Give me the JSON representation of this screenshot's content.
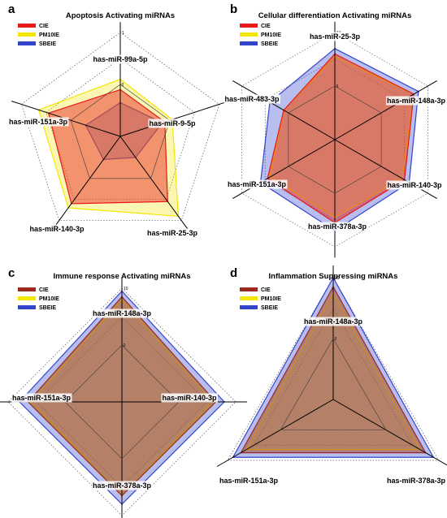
{
  "chart_data": [
    {
      "type": "radar",
      "panel": "a",
      "title": "Apoptosis Activating miRNAs",
      "axes": [
        "has-miR-99a-5p",
        "has-miR-9-5p",
        "has-miR-25-3p",
        "has-miR-140-3p",
        "has-miR-151a-3p"
      ],
      "max_tick_label": "1",
      "mid_tick_label": "0",
      "rlim": [
        -1,
        1
      ],
      "legend": {
        "position": "top-left"
      },
      "series": [
        {
          "name": "SBEIE",
          "color": "#3344cc",
          "values": [
            -0.35,
            -0.15,
            -0.5,
            -0.45,
            -0.3
          ]
        },
        {
          "name": "PM10IE",
          "color": "#f2e600",
          "values": [
            0.1,
            0.05,
            0.9,
            0.7,
            0.65
          ]
        },
        {
          "name": "CIE",
          "color": "#e8191a",
          "values": [
            -0.1,
            -0.1,
            0.55,
            0.6,
            0.45
          ]
        }
      ]
    },
    {
      "type": "radar",
      "panel": "b",
      "title": "Cellular differentiation Activating miRNAs",
      "axes": [
        "has-miR-25-3p",
        "has-miR-148a-3p",
        "has-miR-140-3p",
        "has-miR-378a-3p",
        "has-miR-151a-3p",
        "has-miR-483-3p"
      ],
      "max_tick_label": "10",
      "mid_tick_label": "0",
      "rlim": [
        -10,
        10
      ],
      "legend": {
        "position": "top-left"
      },
      "series": [
        {
          "name": "SBEIE",
          "color": "#3344cc",
          "values": [
            7,
            8,
            6,
            7,
            6,
            4
          ]
        },
        {
          "name": "PM10IE",
          "color": "#f2e600",
          "values": [
            5.5,
            7,
            4.5,
            4.5,
            4,
            1
          ]
        },
        {
          "name": "CIE",
          "color": "#e8191a",
          "values": [
            6,
            7,
            5,
            5.5,
            4.5,
            1
          ]
        }
      ]
    },
    {
      "type": "radar",
      "panel": "c",
      "title": "Immune response Activating miRNAs",
      "axes": [
        "has-miR-148a-3p",
        "has-miR-140-3p",
        "has-miR-378a-3p",
        "has-miR-151a-3p"
      ],
      "max_tick_label": "10",
      "mid_tick_label": "0",
      "rlim": [
        -10,
        10
      ],
      "legend": {
        "position": "top-left"
      },
      "series": [
        {
          "name": "SBEIE",
          "color": "#3344cc",
          "values": [
            9.5,
            8,
            8,
            8
          ]
        },
        {
          "name": "PM10IE",
          "color": "#f2e600",
          "values": [
            8,
            6,
            6.5,
            6
          ]
        },
        {
          "name": "CIE",
          "color": "#9c2b1f",
          "values": [
            8.5,
            6.5,
            6.5,
            6.5
          ]
        }
      ]
    },
    {
      "type": "radar",
      "panel": "d",
      "title": "Inflammation Suppressing miRNAs",
      "axes": [
        "has-miR-148a-3p",
        "has-miR-378a-3p",
        "has-miR-151a-3p"
      ],
      "max_tick_label": "10",
      "mid_tick_label": "0",
      "rlim": [
        -10,
        10
      ],
      "legend": {
        "position": "top-left"
      },
      "series": [
        {
          "name": "SBEIE",
          "color": "#3344cc",
          "values": [
            10,
            9,
            9
          ]
        },
        {
          "name": "PM10IE",
          "color": "#f2e600",
          "values": [
            7.5,
            6.5,
            6.5
          ]
        },
        {
          "name": "CIE",
          "color": "#9c2b1f",
          "values": [
            8.5,
            7.5,
            7.5
          ]
        }
      ]
    }
  ]
}
